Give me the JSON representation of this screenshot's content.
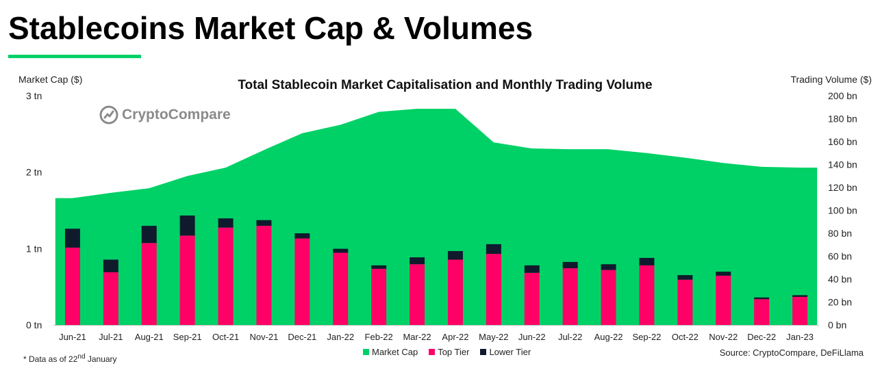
{
  "header": {
    "title": "Stablecoins Market Cap & Volumes"
  },
  "watermark": {
    "text": "CryptoCompare"
  },
  "footer": {
    "footnote_prefix": "* Data as of 22",
    "footnote_sup": "nd",
    "footnote_suffix": " January",
    "source": "Source: CryptoCompare, DeFiLlama"
  },
  "colors": {
    "accent": "#00D166",
    "market_cap": "#00D166",
    "top_tier": "#FF0066",
    "lower_tier": "#0F1B2D"
  },
  "icons": {
    "watermark_logo": "cryptocompare-logo-icon"
  },
  "chart_data": {
    "type": "bar",
    "title": "Total Stablecoin Market Capitalisation and Monthly Trading Volume",
    "ylabel_left": "Market Cap ($)",
    "ylabel_right": "Trading Volume ($)",
    "categories": [
      "Jun-21",
      "Jul-21",
      "Aug-21",
      "Sep-21",
      "Oct-21",
      "Nov-21",
      "Dec-21",
      "Jan-22",
      "Feb-22",
      "Mar-22",
      "Apr-22",
      "May-22",
      "Jun-22",
      "Jul-22",
      "Aug-22",
      "Sep-22",
      "Oct-22",
      "Nov-22",
      "Dec-22",
      "Jan-23"
    ],
    "left_axis": {
      "ylim": [
        0,
        3
      ],
      "ticks": [
        0,
        1,
        2,
        3
      ],
      "tick_labels": [
        "0 tn",
        "1 tn",
        "2 tn",
        "3 tn"
      ]
    },
    "right_axis": {
      "ylim": [
        0,
        200
      ],
      "ticks": [
        0,
        20,
        40,
        60,
        80,
        100,
        120,
        140,
        160,
        180,
        200
      ],
      "tick_labels": [
        "0 bn",
        "20 bn",
        "40 bn",
        "60 bn",
        "80 bn",
        "100 bn",
        "120 bn",
        "140 bn",
        "160 bn",
        "180 bn",
        "200 bn"
      ]
    },
    "legend_position": "bottom",
    "grid": false,
    "series": [
      {
        "name": "Market Cap",
        "type": "area",
        "axis": "left",
        "values": [
          1.66,
          1.73,
          1.79,
          1.95,
          2.06,
          2.29,
          2.51,
          2.62,
          2.79,
          2.83,
          2.83,
          2.39,
          2.31,
          2.3,
          2.3,
          2.25,
          2.19,
          2.12,
          2.07,
          2.06
        ]
      },
      {
        "name": "Top Tier",
        "type": "bar",
        "stack": "volume",
        "axis": "right",
        "values": [
          67.5,
          46.0,
          71.5,
          78.0,
          85.0,
          86.5,
          75.5,
          63.0,
          49.0,
          53.0,
          57.0,
          62.0,
          45.5,
          49.5,
          48.0,
          52.0,
          39.5,
          43.0,
          22.5,
          24.5
        ]
      },
      {
        "name": "Lower Tier",
        "type": "bar",
        "stack": "volume",
        "axis": "right",
        "values": [
          16.5,
          11.0,
          15.0,
          17.5,
          8.0,
          5.0,
          4.5,
          3.5,
          3.0,
          6.0,
          7.5,
          8.5,
          6.5,
          5.5,
          5.0,
          6.5,
          4.0,
          3.5,
          1.5,
          1.5
        ]
      }
    ]
  }
}
